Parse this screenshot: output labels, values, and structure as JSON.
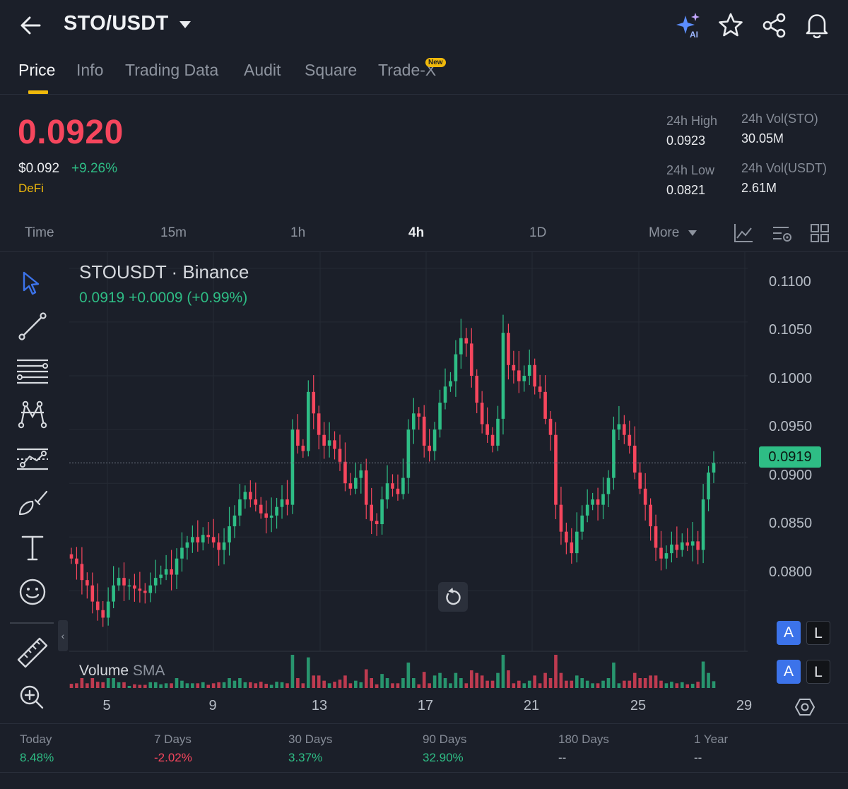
{
  "header": {
    "pair": "STO/USDT"
  },
  "tabs": [
    {
      "label": "Price"
    },
    {
      "label": "Info"
    },
    {
      "label": "Trading Data"
    },
    {
      "label": "Audit"
    },
    {
      "label": "Square"
    },
    {
      "label": "Trade-X"
    }
  ],
  "new_badge": "New",
  "ai_label": "AI",
  "price": {
    "last": "0.0920",
    "usd": "$0.092",
    "change_pct": "+9.26%",
    "tag": "DeFi"
  },
  "stats": {
    "high_label": "24h High",
    "high_value": "0.0923",
    "low_label": "24h Low",
    "low_value": "0.0821",
    "vol_base_label": "24h Vol(STO)",
    "vol_base_value": "30.05M",
    "vol_quote_label": "24h Vol(USDT)",
    "vol_quote_value": "2.61M"
  },
  "intervals": [
    {
      "label": "Time"
    },
    {
      "label": "15m"
    },
    {
      "label": "1h"
    },
    {
      "label": "4h",
      "active": true
    },
    {
      "label": "1D"
    },
    {
      "label": "More"
    }
  ],
  "chart": {
    "title": "STOUSDT · Binance",
    "ohlc": "0.0919  +0.0009 (+0.99%)",
    "last_price_tag": "0.0919",
    "volume_label": "Volume",
    "volume_sma_label": "SMA",
    "al_a": "A",
    "al_l": "L"
  },
  "colors": {
    "up": "#2ebd85",
    "down": "#f6465d",
    "accent": "#f0b90b",
    "background": "#1b1f29"
  },
  "chart_data": {
    "type": "candlestick",
    "title": "STOUSDT · Binance",
    "interval": "4h",
    "y_ticks": [
      "0.1100",
      "0.1050",
      "0.1000",
      "0.0950",
      "0.0900",
      "0.0850",
      "0.0800"
    ],
    "x_ticks": [
      "5",
      "9",
      "13",
      "17",
      "21",
      "25",
      "29"
    ],
    "ylim": [
      0.0772,
      0.1115
    ],
    "last_price": 0.0919,
    "close_series_approx": [
      0.083,
      0.0825,
      0.081,
      0.0805,
      0.079,
      0.0782,
      0.0775,
      0.079,
      0.0805,
      0.0812,
      0.0805,
      0.0805,
      0.0802,
      0.08,
      0.0798,
      0.0805,
      0.0812,
      0.0815,
      0.082,
      0.0815,
      0.083,
      0.084,
      0.0845,
      0.085,
      0.0845,
      0.0852,
      0.085,
      0.0845,
      0.0838,
      0.0845,
      0.086,
      0.087,
      0.0885,
      0.0892,
      0.0885,
      0.088,
      0.0872,
      0.0868,
      0.087,
      0.0878,
      0.0885,
      0.088,
      0.095,
      0.0935,
      0.093,
      0.0985,
      0.0965,
      0.0945,
      0.0935,
      0.094,
      0.0932,
      0.092,
      0.09,
      0.0895,
      0.0905,
      0.0912,
      0.088,
      0.0865,
      0.0862,
      0.0885,
      0.09,
      0.0895,
      0.089,
      0.0905,
      0.095,
      0.0965,
      0.0962,
      0.0935,
      0.093,
      0.095,
      0.0975,
      0.099,
      0.0995,
      0.102,
      0.1035,
      0.103,
      0.1,
      0.0975,
      0.0955,
      0.0945,
      0.0935,
      0.096,
      0.104,
      0.101,
      0.1005,
      0.0995,
      0.1,
      0.101,
      0.099,
      0.0985,
      0.096,
      0.0945,
      0.088,
      0.0855,
      0.0845,
      0.0835,
      0.0855,
      0.087,
      0.088,
      0.0885,
      0.088,
      0.089,
      0.0905,
      0.095,
      0.0955,
      0.0945,
      0.0935,
      0.091,
      0.0895,
      0.088,
      0.086,
      0.084,
      0.083,
      0.0835,
      0.0843,
      0.0838,
      0.0845,
      0.0842,
      0.0846,
      0.0838,
      0.0885,
      0.091,
      0.0919
    ]
  },
  "period_performance": [
    {
      "label": "Today",
      "value": "8.48%",
      "dir": "pos"
    },
    {
      "label": "7 Days",
      "value": "-2.02%",
      "dir": "neg"
    },
    {
      "label": "30 Days",
      "value": "3.37%",
      "dir": "pos"
    },
    {
      "label": "90 Days",
      "value": "32.90%",
      "dir": "pos"
    },
    {
      "label": "180 Days",
      "value": "--",
      "dir": "neu"
    },
    {
      "label": "1 Year",
      "value": "--",
      "dir": "neu"
    }
  ],
  "icons": [
    "back-arrow-icon",
    "caret-down-icon",
    "ai-sparkle-icon",
    "star-icon",
    "share-icon",
    "bell-icon",
    "cursor-icon",
    "trendline-icon",
    "fib-lines-icon",
    "pattern-icon",
    "prediction-icon",
    "brush-icon",
    "text-icon",
    "emoji-icon",
    "ruler-icon",
    "zoom-in-icon",
    "reset-icon",
    "settings-icon",
    "indicator-icon",
    "chart-settings-icon",
    "layout-icon"
  ]
}
